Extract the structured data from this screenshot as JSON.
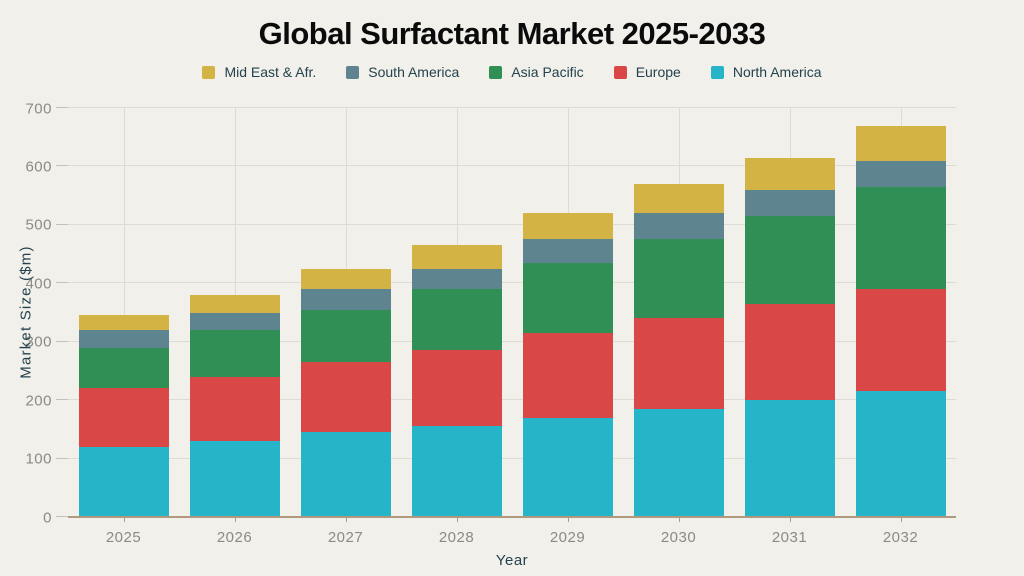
{
  "page": {
    "title": "Global Surfactant Market 2025-2033"
  },
  "chart_data": {
    "type": "bar",
    "stacked": true,
    "title": "Global Surfactant Market 2025-2033",
    "xlabel": "Year",
    "ylabel": "Market Size ($m)",
    "ylim": [
      0,
      700
    ],
    "yticks": [
      0,
      100,
      200,
      300,
      400,
      500,
      600,
      700
    ],
    "grid": true,
    "legend_position": "top",
    "categories": [
      "2025",
      "2026",
      "2027",
      "2028",
      "2029",
      "2030",
      "2031",
      "2032"
    ],
    "series": [
      {
        "name": "North America",
        "color": "#25b4c8",
        "values": [
          120,
          130,
          145,
          155,
          170,
          185,
          200,
          215
        ]
      },
      {
        "name": "Europe",
        "color": "#d94747",
        "values": [
          100,
          110,
          120,
          130,
          145,
          155,
          165,
          175
        ]
      },
      {
        "name": "Asia Pacific",
        "color": "#2f8f55",
        "values": [
          70,
          80,
          90,
          105,
          120,
          135,
          150,
          175
        ]
      },
      {
        "name": "South America",
        "color": "#5e8490",
        "values": [
          30,
          30,
          35,
          35,
          40,
          45,
          45,
          45
        ]
      },
      {
        "name": "Mid East & Afr.",
        "color": "#d3b344",
        "values": [
          25,
          30,
          35,
          40,
          45,
          50,
          55,
          60
        ]
      }
    ],
    "legend_order": [
      "Mid East & Afr.",
      "South America",
      "Asia Pacific",
      "Europe",
      "North America"
    ]
  },
  "colors": {
    "background": "#f1f0ea",
    "gridline": "#dddcd4",
    "axis_line": "#b0997f",
    "tick_text": "#8b8a85",
    "axis_title_text": "#24424e",
    "title_text": "#0b0b0b"
  }
}
